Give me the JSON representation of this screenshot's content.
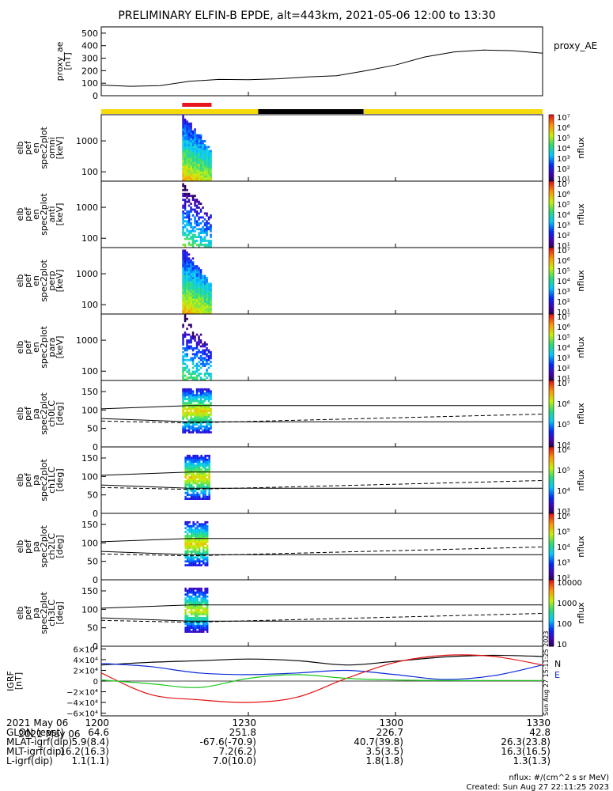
{
  "title": "PRELIMINARY ELFIN-B EPDE, alt=443km, 2021-05-06 12:00 to 13:30",
  "colors": {
    "sunlight": "#f5d90a",
    "eclipse": "#000000",
    "science_zone": "#e8141c",
    "bx": "#000000",
    "by": "#0b2bd6",
    "bz": "#e21010",
    "be": "#1cc71c"
  },
  "chart_data": [
    {
      "id": "ae",
      "type": "line",
      "ylabel": "proxy_ae\n[nT]",
      "legend": "proxy_AE",
      "ylim": [
        0,
        550
      ],
      "yticks": [
        0,
        100,
        200,
        300,
        400,
        500
      ],
      "x_minutes": [
        0,
        6,
        12,
        18,
        24,
        30,
        36,
        42,
        48,
        54,
        60,
        66,
        72,
        78,
        84,
        90
      ],
      "values": [
        85,
        75,
        80,
        115,
        130,
        128,
        135,
        150,
        160,
        200,
        245,
        310,
        350,
        365,
        360,
        340
      ]
    },
    {
      "id": "bar",
      "type": "bar",
      "segments": [
        {
          "start_min": 0,
          "end_min": 32,
          "state": "sunlight"
        },
        {
          "start_min": 32,
          "end_min": 53.5,
          "state": "eclipse"
        },
        {
          "start_min": 53.5,
          "end_min": 90,
          "state": "sunlight"
        }
      ],
      "science_zone": [
        16.5,
        22.5
      ]
    },
    {
      "id": "omni",
      "type": "heatmap",
      "ylabel": "elb\npef\nen\nspec2plot\nomni\n[keV]",
      "yscale": "log",
      "ylim": [
        50,
        7000
      ],
      "yticks": [
        100,
        1000
      ],
      "zscale": "log",
      "zlim": [
        10,
        10000000
      ],
      "zlabel": "nflux",
      "colorbar_ticks": [
        "10⁷",
        "10⁶",
        "10⁵",
        "10⁴",
        "10³",
        "10²",
        "10¹"
      ],
      "time_range_min": [
        16.5,
        22.3
      ],
      "comment": "spectrogram"
    },
    {
      "id": "anti",
      "type": "heatmap",
      "ylabel": "elb\npef\nen\nspec2plot\nanti\n[keV]",
      "yscale": "log",
      "ylim": [
        50,
        7000
      ],
      "yticks": [
        100,
        1000
      ],
      "zscale": "log",
      "zlim": [
        10,
        10000000
      ],
      "zlabel": "nflux",
      "colorbar_ticks": [
        "10⁷",
        "10⁶",
        "10⁵",
        "10⁴",
        "10³",
        "10²",
        "10¹"
      ],
      "time_range_min": [
        16.5,
        22.3
      ]
    },
    {
      "id": "perp",
      "type": "heatmap",
      "ylabel": "elb\npef\nen\nspec2plot\nperp\n[keV]",
      "yscale": "log",
      "ylim": [
        50,
        7000
      ],
      "yticks": [
        100,
        1000
      ],
      "zscale": "log",
      "zlim": [
        10,
        10000000
      ],
      "zlabel": "nflux",
      "colorbar_ticks": [
        "10⁷",
        "10⁶",
        "10⁵",
        "10⁴",
        "10³",
        "10²",
        "10¹"
      ],
      "time_range_min": [
        16.5,
        22.3
      ]
    },
    {
      "id": "para",
      "type": "heatmap",
      "ylabel": "elb\npef\nen\nspec2plot\npara\n[keV]",
      "yscale": "log",
      "ylim": [
        50,
        7000
      ],
      "yticks": [
        100,
        1000
      ],
      "zscale": "log",
      "zlim": [
        10,
        10000000
      ],
      "zlabel": "nflux",
      "colorbar_ticks": [
        "10⁷",
        "10⁶",
        "10⁵",
        "10⁴",
        "10³",
        "10²",
        "10¹"
      ],
      "time_range_min": [
        16.5,
        22.3
      ]
    },
    {
      "id": "ch0",
      "type": "heatmap",
      "ylabel": "elb\npef\npa\nspec2plot\nch0LC\n[deg]",
      "ylim": [
        0,
        180
      ],
      "yticks": [
        0,
        50,
        100,
        150
      ],
      "zscale": "log",
      "zlim": [
        1000,
        10000000
      ],
      "zlabel": "nflux",
      "colorbar_ticks": [
        "10⁷",
        "10⁶",
        "10⁵",
        "10⁴"
      ],
      "time_range_min": [
        16.5,
        22.3
      ],
      "loss_cone_solid": {
        "x_minutes": [
          0,
          18,
          90
        ],
        "upper": [
          103,
          112,
          112
        ],
        "lower": [
          77,
          68,
          68
        ]
      },
      "loss_cone_dashed": {
        "x_minutes": [
          0,
          18,
          90
        ],
        "values": [
          70,
          65,
          89
        ]
      }
    },
    {
      "id": "ch1",
      "type": "heatmap",
      "ylabel": "elb\npef\npa\nspec2plot\nch1LC\n[deg]",
      "ylim": [
        0,
        180
      ],
      "yticks": [
        0,
        50,
        100,
        150
      ],
      "zscale": "log",
      "zlim": [
        1000,
        1000000
      ],
      "zlabel": "nflux",
      "colorbar_ticks": [
        "10⁶",
        "10⁵",
        "10⁴",
        "10³"
      ],
      "time_range_min": [
        17.0,
        22.0
      ],
      "loss_cone_solid": {
        "x_minutes": [
          0,
          18,
          90
        ],
        "upper": [
          103,
          112,
          112
        ],
        "lower": [
          77,
          68,
          68
        ]
      },
      "loss_cone_dashed": {
        "x_minutes": [
          0,
          18,
          90
        ],
        "values": [
          70,
          65,
          89
        ]
      }
    },
    {
      "id": "ch2",
      "type": "heatmap",
      "ylabel": "elb\npef\npa\nspec2plot\nch2LC\n[deg]",
      "ylim": [
        0,
        180
      ],
      "yticks": [
        0,
        50,
        100,
        150
      ],
      "zscale": "log",
      "zlim": [
        100,
        1000000
      ],
      "zlabel": "nflux",
      "colorbar_ticks": [
        "10⁶",
        "10⁵",
        "10⁴",
        "10³",
        "10²"
      ],
      "time_range_min": [
        17.0,
        21.8
      ],
      "loss_cone_solid": {
        "x_minutes": [
          0,
          18,
          90
        ],
        "upper": [
          103,
          112,
          112
        ],
        "lower": [
          77,
          68,
          68
        ]
      },
      "loss_cone_dashed": {
        "x_minutes": [
          0,
          18,
          90
        ],
        "values": [
          70,
          65,
          89
        ]
      }
    },
    {
      "id": "ch3",
      "type": "heatmap",
      "ylabel": "elb\npef\npa\nspec2plot\nch3LC\n[deg]",
      "ylim": [
        0,
        180
      ],
      "yticks": [
        0,
        50,
        100,
        150
      ],
      "zscale": "log",
      "zlim": [
        10,
        20000
      ],
      "zlabel": "nflux",
      "colorbar_ticks": [
        "10000",
        "1000",
        "100",
        "10"
      ],
      "time_range_min": [
        17.0,
        21.5
      ],
      "loss_cone_solid": {
        "x_minutes": [
          0,
          18,
          90
        ],
        "upper": [
          103,
          112,
          112
        ],
        "lower": [
          77,
          68,
          68
        ]
      },
      "loss_cone_dashed": {
        "x_minutes": [
          0,
          18,
          90
        ],
        "values": [
          70,
          65,
          89
        ]
      }
    },
    {
      "id": "igrf",
      "type": "line",
      "ylabel": "IGRF\n[nT]",
      "ylim": [
        -65000,
        65000
      ],
      "yticks": [
        "6×10⁴",
        "4×10⁴",
        "2×10⁴",
        "0",
        "−2×10⁴",
        "−4×10⁴",
        "−6×10⁴"
      ],
      "ytick_values": [
        60000,
        40000,
        20000,
        0,
        -20000,
        -40000,
        -60000
      ],
      "x_minutes": [
        0,
        10,
        20,
        30,
        40,
        50,
        60,
        70,
        80,
        90
      ],
      "series": [
        {
          "name": "N",
          "color": "#000000",
          "values": [
            30000,
            35000,
            38000,
            41000,
            38000,
            30000,
            37000,
            45000,
            48000,
            46000
          ]
        },
        {
          "name": "E",
          "color": "#0b2bd6",
          "values": [
            33000,
            27000,
            15000,
            12000,
            15000,
            20000,
            12000,
            3000,
            10000,
            30000
          ]
        },
        {
          "name": "",
          "color": "#e21010",
          "values": [
            15000,
            -25000,
            -35000,
            -40000,
            -30000,
            5000,
            35000,
            48000,
            46000,
            30000
          ]
        },
        {
          "name": "",
          "color": "#1cc71c",
          "values": [
            2000,
            -5000,
            -12000,
            5000,
            12000,
            5000,
            2000,
            1000,
            1000,
            1000
          ]
        }
      ],
      "side_text": "Sun Aug 27 15:11:25 2023"
    }
  ],
  "xaxis": {
    "ticks": [
      "1200",
      "1230",
      "1300",
      "1330"
    ],
    "tick_minutes": [
      0,
      30,
      60,
      90
    ]
  },
  "footer": {
    "row_labels": [
      "2021 May 06",
      "GLON (east)",
      "MLAT-igrf(dip)",
      "MLT-igrf(dip)",
      "L-igrf(dip)"
    ],
    "columns": [
      [
        "1200",
        "64.6",
        "5.9(8.4)",
        "16.2(16.3)",
        "1.1(1.1)"
      ],
      [
        "1230",
        "251.8",
        "-67.6(-70.9)",
        "7.2(6.2)",
        "7.0(10.0)"
      ],
      [
        "1300",
        "226.7",
        "40.7(39.8)",
        "3.5(3.5)",
        "1.8(1.8)"
      ],
      [
        "1330",
        "42.8",
        "26.3(23.8)",
        "16.3(16.5)",
        "1.3(1.3)"
      ]
    ],
    "units_note": "nflux: #/(cm^2 s sr MeV)",
    "created": "Created: Sun Aug 27 22:11:25 2023"
  }
}
